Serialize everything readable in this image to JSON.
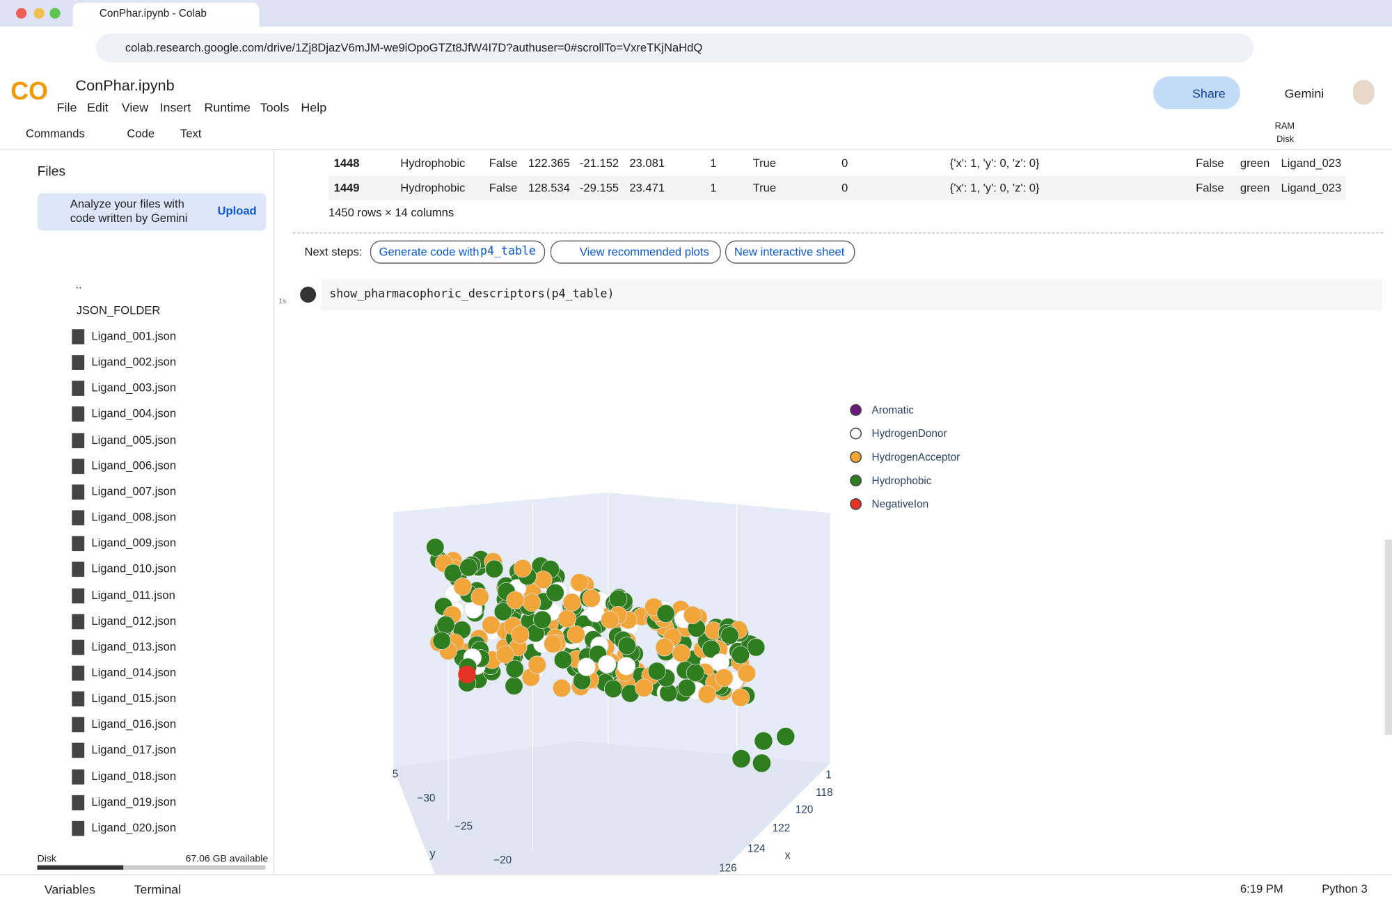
{
  "browser": {
    "tab_title": "ConPhar.ipynb - Colab",
    "url": "colab.research.google.com/drive/1Zj8DjazV6mJM-we9iOpoGTZt8JfW4I7D?authuser=0#scrollTo=VxreTKjNaHdQ"
  },
  "header": {
    "notebook": "ConPhar.ipynb",
    "menu": [
      "File",
      "Edit",
      "View",
      "Insert",
      "Runtime",
      "Tools",
      "Help"
    ],
    "share": "Share",
    "gemini": "Gemini"
  },
  "toolbar": {
    "commands": "Commands",
    "code": "Code",
    "text": "Text",
    "ram": "RAM",
    "disk": "Disk"
  },
  "sidebar": {
    "title": "Files",
    "gemini_prompt": "Analyze your files with code written by Gemini",
    "upload": "Upload",
    "parent": "..",
    "folder": "JSON_FOLDER",
    "files": [
      "Ligand_001.json",
      "Ligand_002.json",
      "Ligand_003.json",
      "Ligand_004.json",
      "Ligand_005.json",
      "Ligand_006.json",
      "Ligand_007.json",
      "Ligand_008.json",
      "Ligand_009.json",
      "Ligand_010.json",
      "Ligand_011.json",
      "Ligand_012.json",
      "Ligand_013.json",
      "Ligand_014.json",
      "Ligand_015.json",
      "Ligand_016.json",
      "Ligand_017.json",
      "Ligand_018.json",
      "Ligand_019.json",
      "Ligand_020.json"
    ],
    "disk_label": "Disk",
    "disk_available": "67.06 GB available"
  },
  "table": {
    "rows": [
      [
        "1448",
        "Hydrophobic",
        "False",
        "122.365",
        "-21.152",
        "23.081",
        "1",
        "True",
        "0",
        "{'x': 1, 'y': 0, 'z': 0}",
        "False",
        "green",
        "Ligand_023"
      ],
      [
        "1449",
        "Hydrophobic",
        "False",
        "128.534",
        "-29.155",
        "23.471",
        "1",
        "True",
        "0",
        "{'x': 1, 'y': 0, 'z': 0}",
        "False",
        "green",
        "Ligand_023"
      ]
    ],
    "summary": "1450 rows × 14 columns"
  },
  "next_steps": {
    "label": "Next steps:",
    "generate": "Generate code with",
    "variable": "p4_table",
    "buttons": [
      "View recommended plots",
      "New interactive sheet"
    ]
  },
  "cell": {
    "code": "show_pharmacophoric_descriptors(p4_table)",
    "time": "1s"
  },
  "plot": {
    "legend": [
      {
        "name": "Aromatic",
        "color": "#6a1b7a"
      },
      {
        "name": "HydrogenDonor",
        "color": "#ffffff"
      },
      {
        "name": "HydrogenAcceptor",
        "color": "#f2a63a"
      },
      {
        "name": "Hydrophobic",
        "color": "#2e7d1f"
      },
      {
        "name": "NegativeIon",
        "color": "#e53224"
      }
    ],
    "y_ticks": [
      "−30",
      "−25",
      "−20"
    ],
    "x_ticks": [
      "118",
      "120",
      "122",
      "124",
      "126"
    ],
    "y_title": "y",
    "x_title": "x",
    "edge_labels": [
      "5",
      "1"
    ]
  },
  "status": {
    "variables": "Variables",
    "terminal": "Terminal",
    "time": "6:19 PM",
    "runtime": "Python 3"
  }
}
